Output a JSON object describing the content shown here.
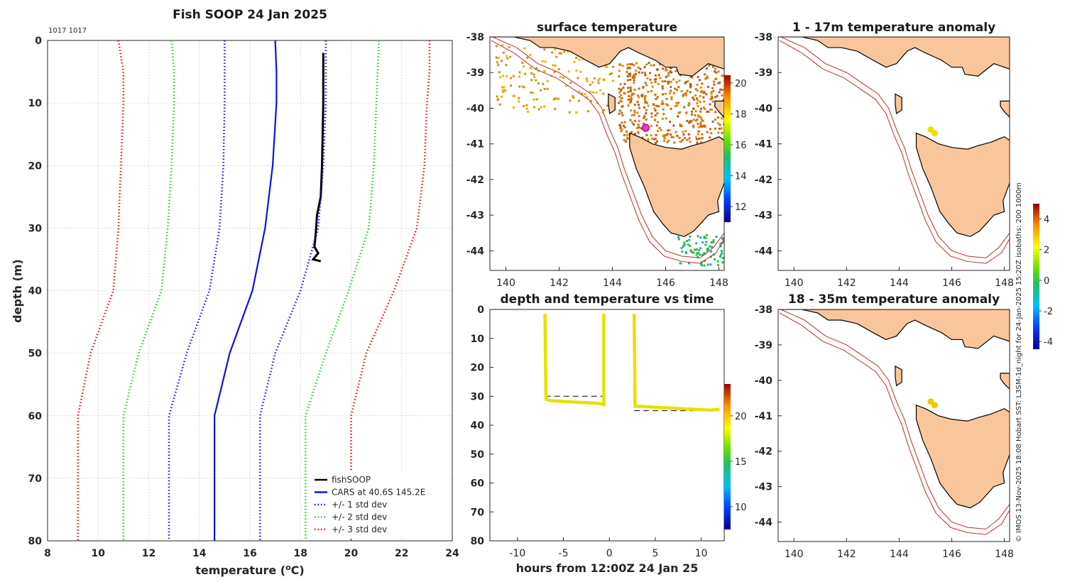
{
  "colors": {
    "cars": "#1010e0",
    "std1": "#1010e0",
    "std2": "#22cc22",
    "std3": "#dd1111",
    "fishsoop": "#000000",
    "land": "#f9c69c",
    "isobath": "#b8322a",
    "track": "#e8e000"
  },
  "figure": {
    "side_note": "© IMOS 13-Nov-2025 18:08 Hobart SST: L3SM-1d_night for 24-Jan-2025 15:20Z isobaths: 200  1000m"
  },
  "chart_data": [
    {
      "type": "line",
      "title": "Fish SOOP 24 Jan 2025",
      "corner_text": "1017 1017",
      "xlabel": "temperature (°C)",
      "xlabel_parts": {
        "pre": "temperature (",
        "sup": "o",
        "post": "C)"
      },
      "ylabel": "depth (m)",
      "xlim": [
        8,
        24
      ],
      "ylim": [
        0,
        80
      ],
      "y_reversed": true,
      "xticks": [
        8,
        10,
        12,
        14,
        16,
        18,
        20,
        22,
        24
      ],
      "yticks": [
        0,
        10,
        20,
        30,
        40,
        50,
        60,
        70,
        80
      ],
      "grid": true,
      "legend_placement": "bottom-right",
      "legend": [
        "fishSOOP",
        "CARS at 40.6S 145.2E",
        "+/- 1 std dev",
        "+/- 2 std dev",
        "+/- 3 std dev"
      ],
      "depths": [
        0,
        5,
        10,
        20,
        30,
        40,
        50,
        60,
        70,
        80
      ],
      "series": [
        {
          "name": "fishSOOP",
          "style": "solid",
          "color_key": "fishsoop",
          "points": [
            [
              18.9,
              2
            ],
            [
              18.9,
              10
            ],
            [
              18.85,
              20
            ],
            [
              18.8,
              25
            ],
            [
              18.65,
              28
            ],
            [
              18.6,
              31
            ],
            [
              18.55,
              33
            ],
            [
              18.7,
              34
            ],
            [
              18.5,
              35
            ],
            [
              18.8,
              35.3
            ]
          ]
        },
        {
          "name": "CARS at 40.6S 145.2E",
          "style": "solid",
          "color_key": "cars",
          "values": [
            17.0,
            17.05,
            17.05,
            16.9,
            16.6,
            16.1,
            15.2,
            14.6,
            14.6,
            14.6
          ]
        },
        {
          "name": "+/- 1 std dev",
          "style": "dotted",
          "color_key": "std1",
          "values": [
            15.0,
            15.0,
            15.0,
            14.95,
            14.8,
            14.4,
            13.5,
            12.8,
            12.8,
            12.8
          ]
        },
        {
          "name": "+/- 1 std dev",
          "style": "dotted",
          "color_key": "std1",
          "values": [
            19.0,
            19.0,
            19.0,
            18.9,
            18.7,
            18.0,
            17.0,
            16.4,
            16.4,
            16.4
          ]
        },
        {
          "name": "+/- 2 std dev",
          "style": "dotted",
          "color_key": "std2",
          "values": [
            12.9,
            13.0,
            13.0,
            12.9,
            12.75,
            12.5,
            11.6,
            11.0,
            11.0,
            11.0
          ]
        },
        {
          "name": "+/- 2 std dev",
          "style": "dotted",
          "color_key": "std2",
          "values": [
            21.1,
            21.05,
            21.0,
            20.9,
            20.7,
            19.9,
            19.0,
            18.2,
            18.2,
            18.2
          ]
        },
        {
          "name": "+/- 3 std dev",
          "style": "dotted",
          "color_key": "std3",
          "values": [
            10.8,
            11.0,
            11.0,
            10.9,
            10.8,
            10.6,
            9.7,
            9.2,
            9.2,
            9.2
          ]
        },
        {
          "name": "+/- 3 std dev",
          "style": "dotted",
          "color_key": "std3",
          "values": [
            23.1,
            23.1,
            23.0,
            22.9,
            22.6,
            21.7,
            20.6,
            20.0,
            20.0,
            20.0
          ]
        }
      ]
    },
    {
      "type": "heatmap",
      "title": "surface temperature",
      "xlim": [
        139.4,
        148.2
      ],
      "ylim": [
        -44.55,
        -38
      ],
      "xticks": [
        140,
        142,
        144,
        146,
        148
      ],
      "yticks": [
        -38,
        -39,
        -40,
        -41,
        -42,
        -43,
        -44
      ],
      "colorbar": {
        "min": 11,
        "max": 20.5,
        "ticks": [
          12,
          14,
          16,
          18,
          20
        ]
      },
      "markers": [
        {
          "x": 145.25,
          "y": -40.55,
          "label": "fishSOOP position"
        }
      ]
    },
    {
      "type": "scatter",
      "title": "depth and temperature vs time",
      "xlabel": "hours from 12:00Z 24 Jan 25",
      "xlim": [
        -13,
        12.5
      ],
      "ylim": [
        0,
        80
      ],
      "y_reversed": true,
      "xticks": [
        -10,
        -5,
        0,
        5,
        10
      ],
      "yticks": [
        0,
        10,
        20,
        30,
        40,
        50,
        60,
        70,
        80
      ],
      "colorbar": {
        "min": 7.5,
        "max": 23.5,
        "ticks": [
          10,
          15,
          20
        ]
      },
      "segments": [
        {
          "t": [
            -7.0,
            -6.9,
            -6.5,
            -4.0,
            -2.0,
            -1.0,
            -0.6,
            -0.6
          ],
          "depth": [
            1.5,
            31,
            31.5,
            32,
            32.3,
            32.5,
            33,
            1.5
          ]
        },
        {
          "t": [
            2.7,
            2.8,
            3.2,
            6.0,
            9.0,
            11.0,
            12.0
          ],
          "depth": [
            1.5,
            33.5,
            33.5,
            34,
            34.5,
            34.8,
            34.5
          ]
        }
      ],
      "reference_lines": [
        {
          "t": [
            -7.0,
            -0.6
          ],
          "depth": 30
        },
        {
          "t": [
            2.7,
            11.5
          ],
          "depth": 35
        }
      ]
    },
    {
      "type": "heatmap",
      "title": "1 - 17m temperature anomaly",
      "xlim": [
        139.4,
        148.2
      ],
      "ylim": [
        -44.55,
        -38
      ],
      "xticks": [
        140,
        142,
        144,
        146,
        148
      ],
      "yticks": [
        -38,
        -39,
        -40,
        -41,
        -42,
        -43,
        -44
      ],
      "markers": [
        {
          "x": 145.2,
          "y": -40.6
        },
        {
          "x": 145.35,
          "y": -40.7
        }
      ]
    },
    {
      "type": "heatmap",
      "title": "18 - 35m temperature anomaly",
      "xlim": [
        139.4,
        148.2
      ],
      "ylim": [
        -44.55,
        -38
      ],
      "xticks": [
        140,
        142,
        144,
        146,
        148
      ],
      "yticks": [
        -38,
        -39,
        -40,
        -41,
        -42,
        -43,
        -44
      ],
      "markers": [
        {
          "x": 145.2,
          "y": -40.6
        },
        {
          "x": 145.35,
          "y": -40.7
        }
      ],
      "colorbar": {
        "min": -4.5,
        "max": 5,
        "ticks": [
          -4,
          -2,
          0,
          2,
          4
        ]
      }
    }
  ]
}
